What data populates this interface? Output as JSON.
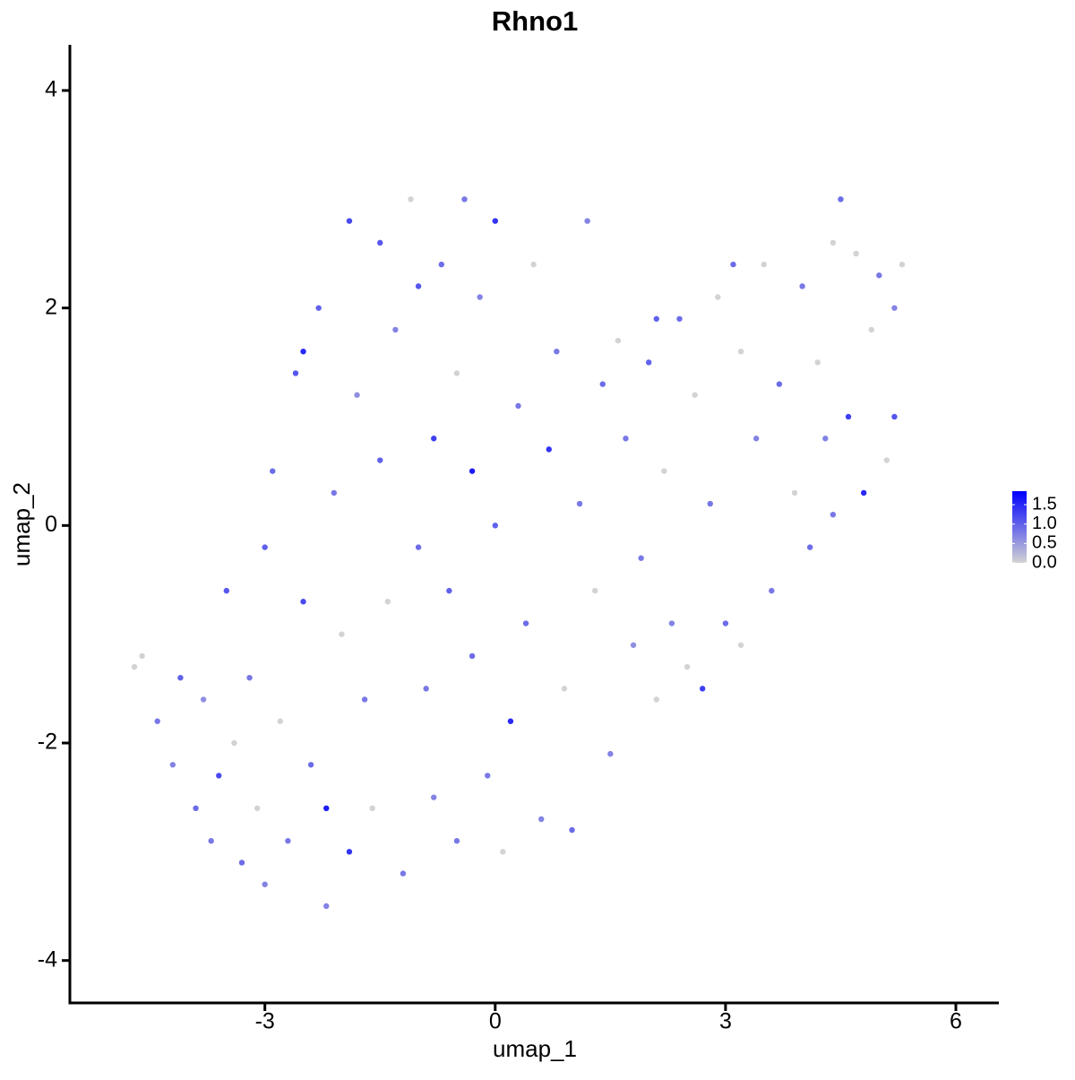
{
  "chart_data": {
    "type": "scatter",
    "title": "Rhno1",
    "x_label": "umap_1",
    "y_label": "umap_2",
    "x": [
      -4.7,
      -4.6,
      -4.4,
      -4.1,
      -4.2,
      -3.9,
      -3.8,
      -3.7,
      -3.6,
      -3.5,
      -3.4,
      -3.3,
      -3.2,
      -3.1,
      -3.0,
      -3.0,
      -2.9,
      -2.8,
      -2.7,
      -2.6,
      -2.5,
      -2.5,
      -2.4,
      -2.3,
      -2.2,
      -2.2,
      -2.1,
      -2.0,
      -1.9,
      -1.9,
      -1.8,
      -1.7,
      -1.6,
      -1.5,
      -1.5,
      -1.4,
      -1.3,
      -1.2,
      -1.1,
      -1.0,
      -1.0,
      -0.9,
      -0.8,
      -0.8,
      -0.7,
      -0.6,
      -0.5,
      -0.5,
      -0.4,
      -0.3,
      -0.3,
      -0.2,
      -0.1,
      0.0,
      0.0,
      0.1,
      0.2,
      0.3,
      0.4,
      0.5,
      0.6,
      0.7,
      0.8,
      0.9,
      1.0,
      1.1,
      1.2,
      1.3,
      1.4,
      1.5,
      1.6,
      1.7,
      1.8,
      1.9,
      2.0,
      2.1,
      2.2,
      2.3,
      2.4,
      2.5,
      2.6,
      2.7,
      2.8,
      2.9,
      3.0,
      3.2,
      3.2,
      3.4,
      3.5,
      3.6,
      3.7,
      3.9,
      4.0,
      4.1,
      4.2,
      4.3,
      4.4,
      4.5,
      4.6,
      4.7,
      4.8,
      4.9,
      5.0,
      5.1,
      5.2,
      5.2,
      5.3,
      4.4,
      3.1,
      2.1
    ],
    "y": [
      -1.3,
      -1.2,
      -1.8,
      -1.4,
      -2.2,
      -2.6,
      -1.6,
      -2.9,
      -2.3,
      -0.6,
      -2.0,
      -3.1,
      -1.4,
      -2.6,
      -0.2,
      -3.3,
      0.5,
      -1.8,
      -2.9,
      1.4,
      -0.7,
      1.6,
      -2.2,
      2.0,
      -2.6,
      -3.5,
      0.3,
      -1.0,
      2.8,
      -3.0,
      1.2,
      -1.6,
      -2.6,
      2.6,
      0.6,
      -0.7,
      1.8,
      -3.2,
      3.0,
      -0.2,
      2.2,
      -1.5,
      0.8,
      -2.5,
      2.4,
      -0.6,
      1.4,
      -2.9,
      3.0,
      0.5,
      -1.2,
      2.1,
      -2.3,
      0.0,
      2.8,
      -3.0,
      -1.8,
      1.1,
      -0.9,
      2.4,
      -2.7,
      0.7,
      1.6,
      -1.5,
      -2.8,
      0.2,
      2.8,
      -0.6,
      1.3,
      -2.1,
      1.7,
      0.8,
      -1.1,
      -0.3,
      1.5,
      -1.6,
      0.5,
      -0.9,
      1.9,
      -1.3,
      1.2,
      -1.5,
      0.2,
      2.1,
      -0.9,
      1.6,
      -1.1,
      0.8,
      2.4,
      -0.6,
      1.3,
      0.3,
      2.2,
      -0.2,
      1.5,
      0.8,
      2.6,
      3.0,
      1.0,
      2.5,
      0.3,
      1.8,
      2.3,
      0.6,
      2.0,
      1.0,
      2.4,
      0.1,
      2.4,
      1.9
    ],
    "values": [
      0.0,
      0.0,
      0.8,
      1.0,
      0.7,
      0.9,
      0.6,
      0.8,
      1.2,
      1.1,
      0.0,
      0.9,
      0.8,
      0.0,
      1.0,
      0.7,
      0.9,
      0.0,
      0.8,
      1.1,
      1.2,
      1.5,
      0.9,
      1.0,
      1.6,
      0.7,
      0.8,
      0.0,
      1.2,
      1.4,
      0.6,
      0.8,
      0.0,
      1.1,
      1.0,
      0.0,
      0.7,
      0.8,
      0.0,
      0.9,
      1.1,
      0.8,
      1.3,
      0.7,
      0.9,
      1.0,
      0.0,
      0.8,
      0.8,
      1.6,
      0.9,
      0.7,
      0.8,
      1.0,
      1.4,
      0.0,
      1.5,
      0.8,
      0.9,
      0.0,
      0.7,
      1.4,
      0.8,
      0.0,
      0.9,
      0.8,
      0.7,
      0.0,
      0.9,
      0.7,
      0.0,
      0.8,
      0.6,
      0.8,
      1.0,
      0.0,
      0.0,
      0.7,
      0.9,
      0.0,
      0.0,
      1.3,
      0.8,
      0.0,
      0.9,
      0.0,
      0.0,
      0.7,
      0.0,
      0.8,
      0.9,
      0.0,
      0.8,
      0.9,
      0.0,
      0.7,
      0.0,
      0.9,
      1.3,
      0.0,
      1.5,
      0.0,
      0.8,
      0.0,
      0.7,
      1.1,
      0.0,
      0.8,
      0.9,
      1.0
    ],
    "xlim": [
      -5.54,
      6.56
    ],
    "xticks": [
      -3,
      0,
      3,
      6
    ],
    "ylim": [
      -4.39,
      4.42
    ],
    "yticks": [
      -4,
      -2,
      0,
      2,
      4
    ],
    "low_color": "#d3d3d3",
    "high_color": "#0000ff",
    "colorlim": [
      0,
      1.85
    ],
    "colorticks": [
      {
        "value": 0,
        "label": "0.0"
      },
      0.5,
      {
        "value": 1,
        "label": "1.0"
      },
      1.5
    ]
  }
}
